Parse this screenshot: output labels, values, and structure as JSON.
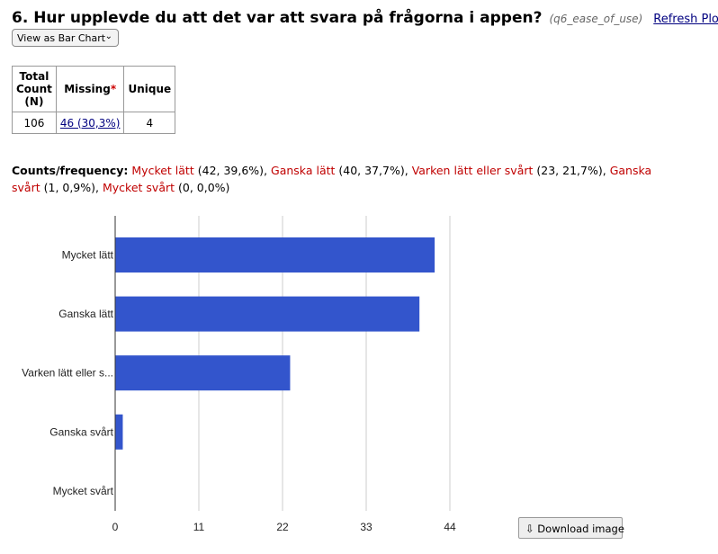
{
  "header": {
    "title": "6. Hur upplevde du att det var att svara på frågorna i appen?",
    "variable": "(q6_ease_of_use)",
    "refresh_label": "Refresh Plot",
    "separator": "|"
  },
  "view_select": {
    "selected": "View as Bar Chart",
    "icon": "chevron-down-icon"
  },
  "stats_table": {
    "headers": {
      "total_line1": "Total",
      "total_line2": "Count",
      "total_line3": "(N)",
      "missing": "Missing",
      "missing_marker": "*",
      "unique": "Unique"
    },
    "values": {
      "total": "106",
      "missing": "46 (30,3%)",
      "unique": "4"
    }
  },
  "counts": {
    "label": "Counts/frequency:",
    "items": [
      {
        "category": "Mycket lätt",
        "detail": "(42, 39,6%)"
      },
      {
        "category": "Ganska lätt",
        "detail": "(40, 37,7%)"
      },
      {
        "category": "Varken lätt eller svårt",
        "detail": "(23, 21,7%)"
      },
      {
        "category": "Ganska svårt",
        "detail": "(1, 0,9%)"
      },
      {
        "category": "Mycket svårt",
        "detail": "(0, 0,0%)"
      }
    ]
  },
  "chart_data": {
    "type": "bar",
    "orientation": "horizontal",
    "categories": [
      "Mycket lätt",
      "Ganska lätt",
      "Varken lätt eller s...",
      "Ganska svårt",
      "Mycket svårt"
    ],
    "values": [
      42,
      40,
      23,
      1,
      0
    ],
    "xticks": [
      0,
      11,
      22,
      33,
      44
    ],
    "xlim": [
      0,
      44
    ],
    "grid": true,
    "bar_color": "#3355cc",
    "grid_color": "#cccccc"
  },
  "download": {
    "label": "Download image",
    "icon": "download-icon"
  }
}
